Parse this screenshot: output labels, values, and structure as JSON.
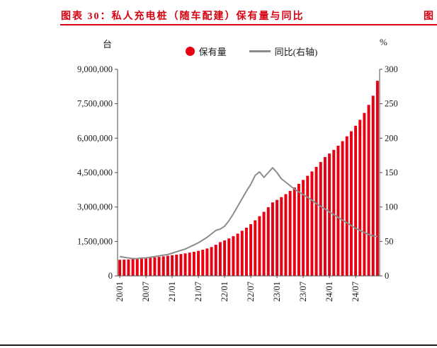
{
  "header": {
    "title": "图表 30：私人充电桩（随车配建）保有量与同比",
    "corner_fragment": "图"
  },
  "colors": {
    "title_red": "#d7000f",
    "bar_red": "#e60012",
    "line_gray": "#8c8c8c",
    "axis_gray": "#4d4d4d"
  },
  "chart_data": {
    "type": "bar",
    "title": "图表 30：私人充电桩（随车配建）保有量与同比",
    "left_unit": "台",
    "right_unit": "%",
    "legend_position": "top-center",
    "grid": false,
    "x_tick_every": 6,
    "x_tick_labels": [
      "20/01",
      "20/07",
      "21/01",
      "21/07",
      "22/01",
      "22/07",
      "23/01",
      "23/07",
      "24/01",
      "24/07"
    ],
    "x_months": [
      "20/01",
      "20/02",
      "20/03",
      "20/04",
      "20/05",
      "20/06",
      "20/07",
      "20/08",
      "20/09",
      "20/10",
      "20/11",
      "20/12",
      "21/01",
      "21/02",
      "21/03",
      "21/04",
      "21/05",
      "21/06",
      "21/07",
      "21/08",
      "21/09",
      "21/10",
      "21/11",
      "21/12",
      "22/01",
      "22/02",
      "22/03",
      "22/04",
      "22/05",
      "22/06",
      "22/07",
      "22/08",
      "22/09",
      "22/10",
      "22/11",
      "22/12",
      "23/01",
      "23/02",
      "23/03",
      "23/04",
      "23/05",
      "23/06",
      "23/07",
      "23/08",
      "23/09",
      "23/10",
      "23/11",
      "23/12",
      "24/01",
      "24/02",
      "24/03",
      "24/04",
      "24/05",
      "24/06",
      "24/07",
      "24/08",
      "24/09",
      "24/10",
      "24/11",
      "24/12"
    ],
    "left_axis": {
      "min": 0,
      "max": 9000000,
      "tick_labels": [
        "0",
        "1,500,000",
        "3,000,000",
        "4,500,000",
        "6,000,000",
        "7,500,000",
        "9,000,000"
      ]
    },
    "right_axis": {
      "min": 0,
      "max": 300,
      "tick_labels": [
        "0",
        "50",
        "100",
        "150",
        "200",
        "250",
        "300"
      ]
    },
    "series": [
      {
        "name": "保有量",
        "type": "bar",
        "axis": "left",
        "color": "#e60012",
        "values": [
          700000,
          706000,
          714000,
          724000,
          736000,
          750000,
          766000,
          784000,
          804000,
          826000,
          850000,
          876000,
          900000,
          924000,
          950000,
          980000,
          1012000,
          1048000,
          1090000,
          1138000,
          1192000,
          1255000,
          1355000,
          1470000,
          1545000,
          1630000,
          1730000,
          1840000,
          1965000,
          2100000,
          2250000,
          2420000,
          2600000,
          2790000,
          2990000,
          3200000,
          3310000,
          3430000,
          3560000,
          3700000,
          3850000,
          4010000,
          4180000,
          4360000,
          4550000,
          4750000,
          4960000,
          5180000,
          5330000,
          5490000,
          5670000,
          5870000,
          6080000,
          6300000,
          6540000,
          6800000,
          7100000,
          7450000,
          7850000,
          8500000
        ]
      },
      {
        "name": "同比(右轴)",
        "type": "line",
        "axis": "right",
        "color": "#8c8c8c",
        "values": [
          28,
          27,
          26,
          25,
          25,
          26,
          26,
          27,
          28,
          29,
          30,
          31,
          33,
          35,
          37,
          39,
          42,
          45,
          48,
          52,
          56,
          61,
          66,
          68,
          72,
          80,
          90,
          101,
          112,
          123,
          133,
          146,
          151,
          143,
          150,
          157,
          150,
          141,
          136,
          131,
          126,
          122,
          118,
          114,
          110,
          105,
          101,
          97,
          93,
          89,
          85,
          81,
          77,
          73,
          69,
          66,
          63,
          60,
          58,
          57
        ]
      }
    ]
  }
}
